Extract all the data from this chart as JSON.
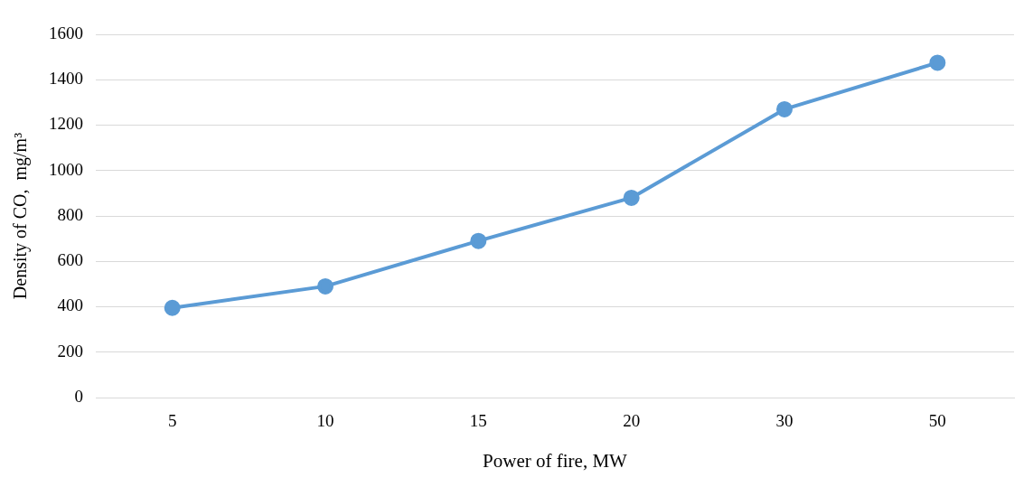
{
  "chart_data": {
    "type": "line",
    "xlabel": "Power of fire, MW",
    "ylabel": "Density of CO,  mg/m³",
    "categories": [
      "5",
      "10",
      "15",
      "20",
      "30",
      "50"
    ],
    "series": [
      {
        "color": "#5b9bd5",
        "values": [
          395,
          490,
          690,
          880,
          1270,
          1475
        ]
      }
    ],
    "ylim": [
      0,
      1600
    ],
    "yticks": [
      0,
      200,
      400,
      600,
      800,
      1000,
      1200,
      1400,
      1600
    ],
    "grid": "y",
    "marker": "circle",
    "line_style": "solid",
    "legend": false
  }
}
